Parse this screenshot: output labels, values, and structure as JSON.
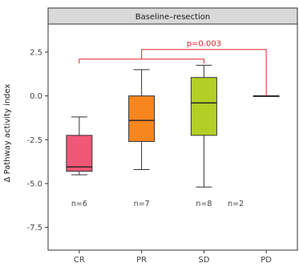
{
  "chart_data": {
    "type": "boxplot",
    "facet_label": "Baseline–resection",
    "ylabel": "Δ Pathway activity index",
    "xlabel": "",
    "categories": [
      "CR",
      "PR",
      "SD",
      "PD"
    ],
    "ylim": [
      -8.8,
      4.1
    ],
    "yticks": [
      -7.5,
      -5.0,
      -2.5,
      0.0,
      2.5
    ],
    "ytick_labels": [
      "-7.5",
      "-5.0",
      "-2.5",
      "0.0",
      "2.5"
    ],
    "grid": false,
    "boxes": [
      {
        "category": "CR",
        "whisker_low": -4.5,
        "q1": -4.3,
        "median": -4.05,
        "q3": -2.25,
        "whisker_high": -1.2,
        "color": "#ef5777",
        "n_label": "n=6"
      },
      {
        "category": "PR",
        "whisker_low": -4.2,
        "q1": -2.6,
        "median": -1.4,
        "q3": 0.0,
        "whisker_high": 1.5,
        "color": "#f7861f",
        "n_label": "n=7"
      },
      {
        "category": "SD",
        "whisker_low": -5.2,
        "q1": -2.25,
        "median": -0.4,
        "q3": 1.05,
        "whisker_high": 1.75,
        "color": "#b3cf26",
        "n_label": "n=8"
      },
      {
        "category": "PD",
        "whisker_low": 0.0,
        "q1": 0.0,
        "median": 0.0,
        "q3": 0.0,
        "whisker_high": 0.0,
        "color": "#5b9bd5",
        "n_label": "n=2"
      }
    ],
    "n_label_y": -6.15,
    "brackets": [
      {
        "label": "p=0.003",
        "from": "PR",
        "to": "PD",
        "y": 2.65,
        "left_tick": 2.1,
        "right_tick": 0.0
      },
      {
        "label": "",
        "from": "CR",
        "to": "SD",
        "y": 2.1,
        "left_tick": 1.85,
        "right_tick": 1.85
      }
    ],
    "bracket_color": "#e0242b",
    "panel_color": "#ffffff",
    "strip_color": "#d9d9d9"
  }
}
